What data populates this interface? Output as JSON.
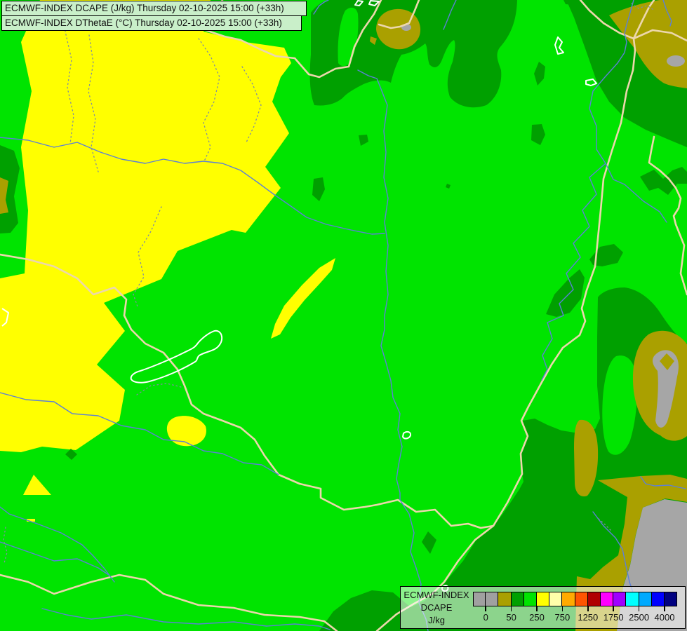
{
  "header": {
    "line1": "ECMWF-INDEX DCAPE (J/kg) Thursday 02-10-2025 15:00 (+33h)",
    "line2": "ECMWF-INDEX DThetaE (°C) Thursday 02-10-2025 15:00 (+33h)"
  },
  "legend": {
    "title": "ECMWF-INDEX",
    "parameter": "DCAPE",
    "units": "J/kg",
    "swatches": [
      "#a0a0a0",
      "#a0a0a0",
      "#aaa000",
      "#00a000",
      "#00e400",
      "#ffff00",
      "#ffffaa",
      "#ffaa00",
      "#ff5500",
      "#b00000",
      "#ff00ff",
      "#9f00ff",
      "#00ffff",
      "#00aaff",
      "#0000ff",
      "#000080"
    ],
    "ticks": [
      {
        "label": "0",
        "boundary": 1
      },
      {
        "label": "50",
        "boundary": 3
      },
      {
        "label": "250",
        "boundary": 5
      },
      {
        "label": "750",
        "boundary": 7
      },
      {
        "label": "1250",
        "boundary": 9
      },
      {
        "label": "1750",
        "boundary": 11
      },
      {
        "label": "2500",
        "boundary": 13
      },
      {
        "label": "4000",
        "boundary": 15
      }
    ]
  },
  "map": {
    "palette": {
      "bright_green": "#00e400",
      "dark_green": "#00a000",
      "olive": "#aaa000",
      "yellow": "#ffff00",
      "gray": "#a6a6a6",
      "border_line": "#ecd7ac",
      "river_line": "#5c80d6",
      "admin_dotted": "#7f8da0",
      "lake_outline": "#ffffff"
    }
  },
  "colors": {
    "header_bg": "#c9efc9",
    "legend_bg": "rgba(255,255,255,0.55)"
  }
}
